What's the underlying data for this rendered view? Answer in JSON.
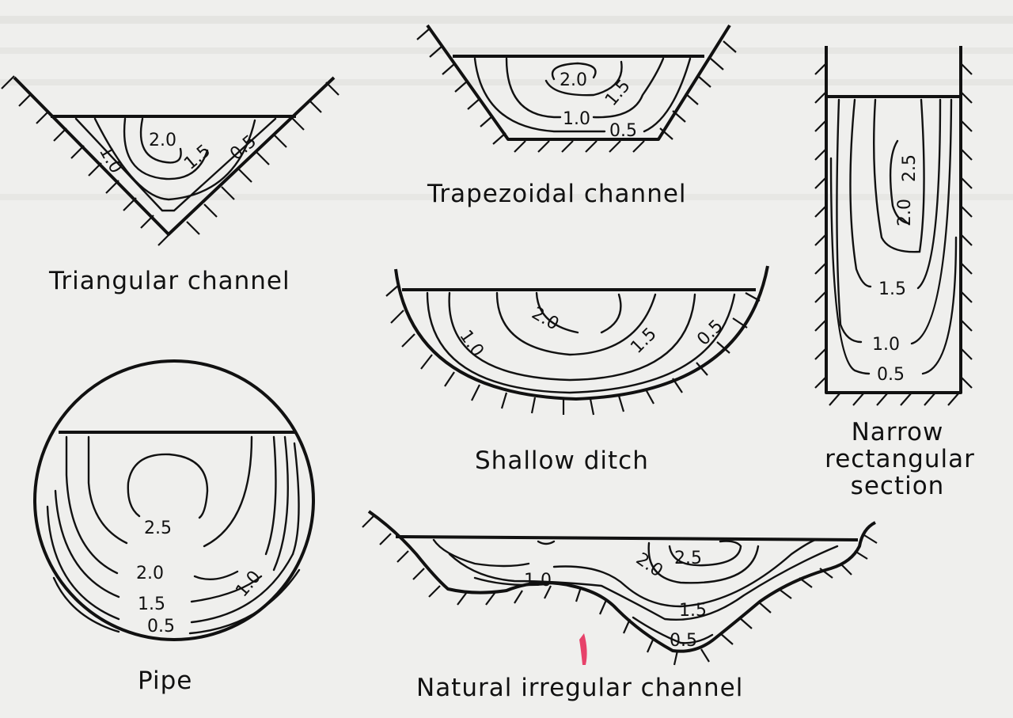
{
  "sections": {
    "triangular": {
      "caption": "Triangular channel",
      "labels": [
        "2.0",
        "1.5",
        "1.0",
        "0.5"
      ]
    },
    "trapezoidal": {
      "caption": "Trapezoidal channel",
      "labels": [
        "2.0",
        "1.5",
        "1.0",
        "0.5"
      ]
    },
    "rectangular": {
      "caption_lines": [
        "Narrow",
        "rectangular",
        "section"
      ],
      "labels": [
        "2.5",
        "2.0",
        "1.5",
        "1.0",
        "0.5"
      ]
    },
    "ditch": {
      "caption": "Shallow ditch",
      "labels": [
        "2.0",
        "1.0",
        "1.5",
        "0.5"
      ]
    },
    "pipe": {
      "caption": "Pipe",
      "labels": [
        "2.5",
        "2.0",
        "1.5",
        "0.5",
        "1.0"
      ]
    },
    "natural": {
      "caption": "Natural irregular channel",
      "labels": [
        "2.5",
        "2.0",
        "1.0",
        "1.5",
        "0.5"
      ]
    }
  }
}
